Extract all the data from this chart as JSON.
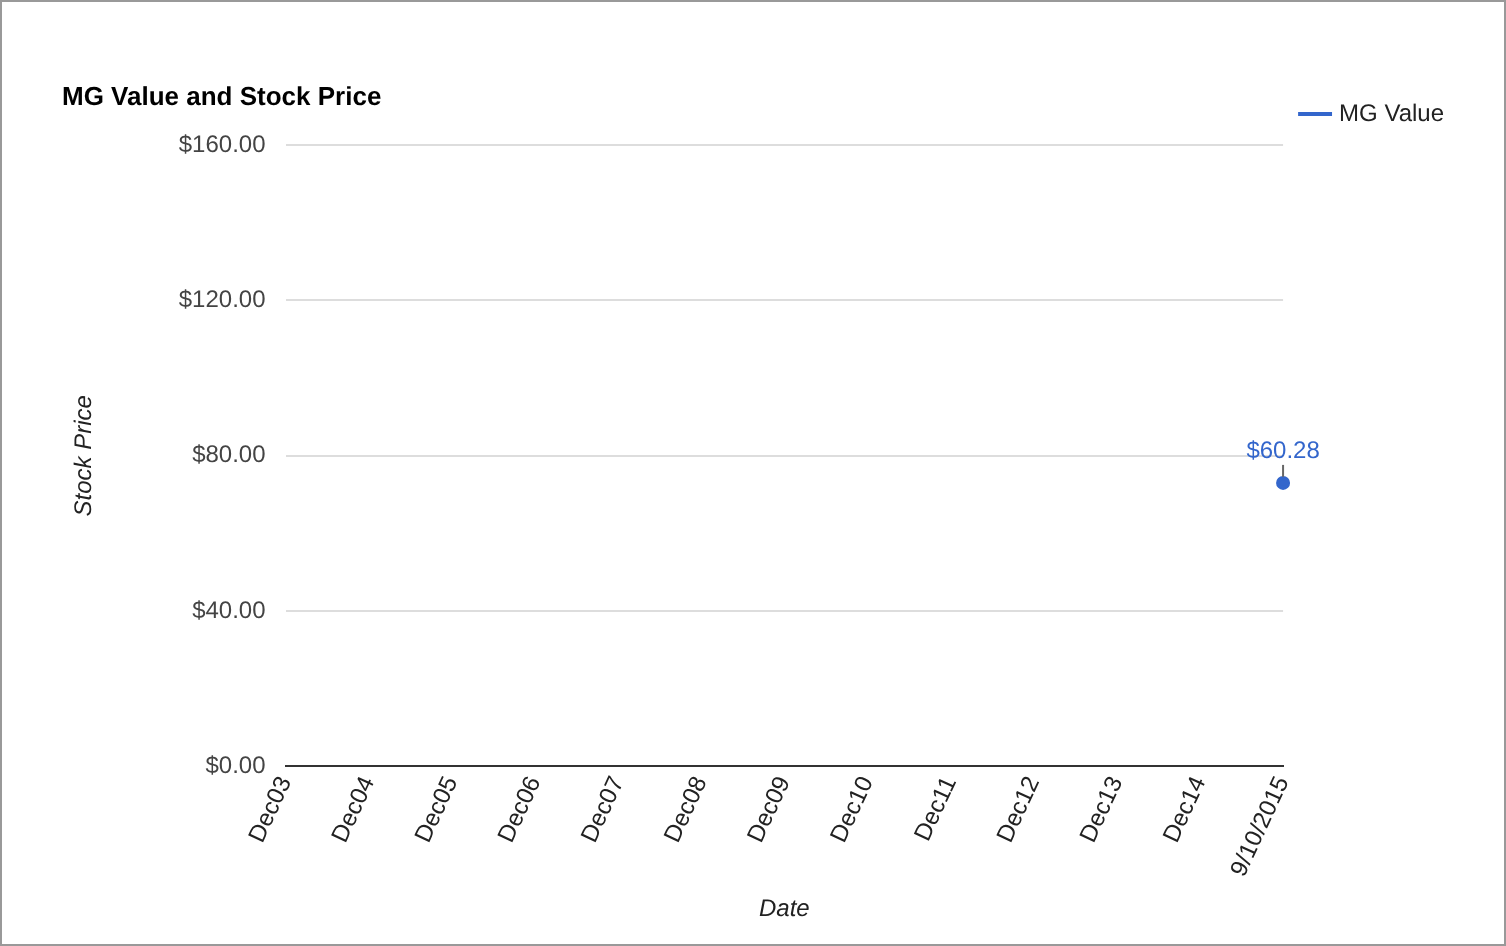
{
  "chart_data": {
    "type": "line",
    "title": "MG Value and Stock Price",
    "xlabel": "Date",
    "ylabel": "Stock Price",
    "categories": [
      "Dec03",
      "Dec04",
      "Dec05",
      "Dec06",
      "Dec07",
      "Dec08",
      "Dec09",
      "Dec10",
      "Dec11",
      "Dec12",
      "Dec13",
      "Dec14",
      "9/10/2015"
    ],
    "series": [
      {
        "name": "MG Value",
        "color": "#3366cc",
        "values": [
          null,
          null,
          null,
          null,
          null,
          null,
          null,
          null,
          null,
          null,
          null,
          null,
          73
        ]
      }
    ],
    "ylim": [
      0,
      160
    ],
    "yticks": [
      {
        "value": 0,
        "label": "$0.00"
      },
      {
        "value": 40,
        "label": "$40.00"
      },
      {
        "value": 80,
        "label": "$80.00"
      },
      {
        "value": 120,
        "label": "$120.00"
      },
      {
        "value": 160,
        "label": "$160.00"
      }
    ],
    "grid": "y",
    "legend": "right",
    "marker": "circle",
    "annotations": [
      {
        "text": "$60.28",
        "x": "9/10/2015",
        "y": 73
      }
    ]
  }
}
